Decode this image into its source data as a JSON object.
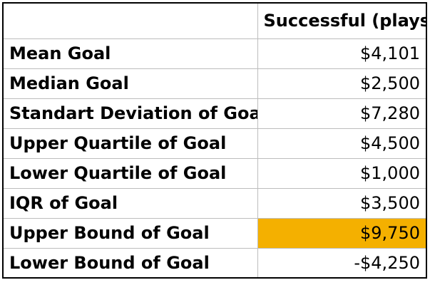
{
  "table": {
    "header": {
      "label": "",
      "value": "Successful (plays)"
    },
    "rows": [
      {
        "label": "Mean Goal",
        "value": "$4,101"
      },
      {
        "label": "Median Goal",
        "value": "$2,500"
      },
      {
        "label": "Standart Deviation of Goal",
        "value": "$7,280"
      },
      {
        "label": "Upper Quartile of Goal",
        "value": "$4,500"
      },
      {
        "label": "Lower Quartile of Goal",
        "value": "$1,000"
      },
      {
        "label": "IQR of Goal",
        "value": "$3,500"
      },
      {
        "label": "Upper Bound of Goal",
        "value": "$9,750",
        "highlight": "#f4b000"
      },
      {
        "label": "Lower Bound of Goal",
        "value": "-$4,250"
      }
    ]
  }
}
